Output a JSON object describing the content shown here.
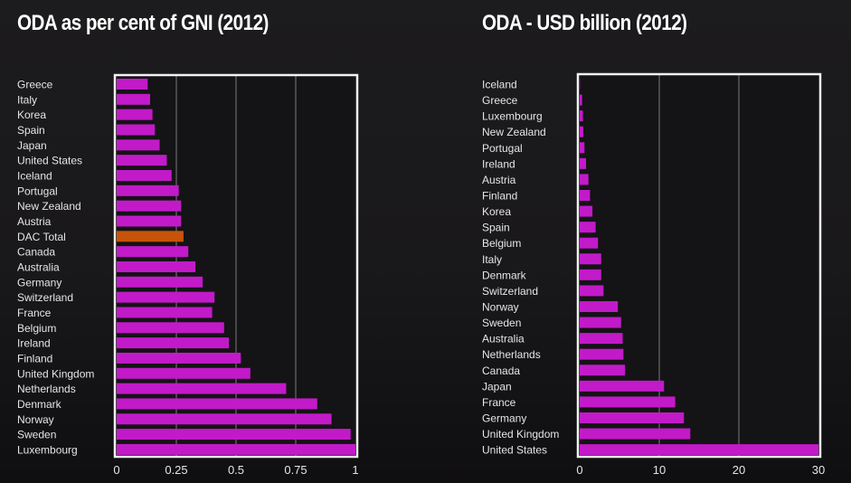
{
  "chart_data": [
    {
      "type": "bar",
      "orientation": "horizontal",
      "title": "ODA as per cent of GNI (2012)",
      "xlabel": "",
      "ylabel": "",
      "xlim": [
        0,
        1
      ],
      "xticks": [
        "0",
        "0.25",
        "0.5",
        "0.75",
        "1"
      ],
      "xtick_values": [
        0,
        0.25,
        0.5,
        0.75,
        1
      ],
      "grid": true,
      "categories": [
        "Greece",
        "Italy",
        "Korea",
        "Spain",
        "Japan",
        "United States",
        "Iceland",
        "Portugal",
        "New Zealand",
        "Austria",
        "DAC Total",
        "Canada",
        "Australia",
        "Germany",
        "Switzerland",
        "France",
        "Belgium",
        "Ireland",
        "Finland",
        "United Kingdom",
        "Netherlands",
        "Denmark",
        "Norway",
        "Sweden",
        "Luxembourg"
      ],
      "values": [
        0.13,
        0.14,
        0.15,
        0.16,
        0.18,
        0.21,
        0.23,
        0.26,
        0.27,
        0.27,
        0.28,
        0.3,
        0.33,
        0.36,
        0.41,
        0.4,
        0.45,
        0.47,
        0.52,
        0.56,
        0.71,
        0.84,
        0.9,
        0.98,
        1.0
      ],
      "highlight": "DAC Total",
      "colors": {
        "bar": "#c21ac9",
        "highlight": "#c8530a",
        "frame": "#f2f2f2",
        "grid": "#6a6a6a"
      }
    },
    {
      "type": "bar",
      "orientation": "horizontal",
      "title": "ODA - USD billion (2012)",
      "xlabel": "",
      "ylabel": "",
      "xlim": [
        0,
        30
      ],
      "xticks": [
        "0",
        "10",
        "20",
        "30"
      ],
      "xtick_values": [
        0,
        10,
        20,
        30
      ],
      "grid": true,
      "categories": [
        "Iceland",
        "Greece",
        "Luxembourg",
        "New Zealand",
        "Portugal",
        "Ireland",
        "Austria",
        "Finland",
        "Korea",
        "Spain",
        "Belgium",
        "Italy",
        "Denmark",
        "Switzerland",
        "Norway",
        "Sweden",
        "Australia",
        "Netherlands",
        "Canada",
        "Japan",
        "France",
        "Germany",
        "United Kingdom",
        "United States"
      ],
      "values": [
        0.03,
        0.3,
        0.4,
        0.45,
        0.6,
        0.8,
        1.1,
        1.3,
        1.6,
        2.0,
        2.3,
        2.7,
        2.7,
        3.0,
        4.8,
        5.2,
        5.4,
        5.5,
        5.7,
        10.6,
        12.0,
        13.1,
        13.9,
        30.0
      ],
      "colors": {
        "bar": "#c21ac9",
        "frame": "#f2f2f2",
        "grid": "#6a6a6a"
      }
    }
  ]
}
